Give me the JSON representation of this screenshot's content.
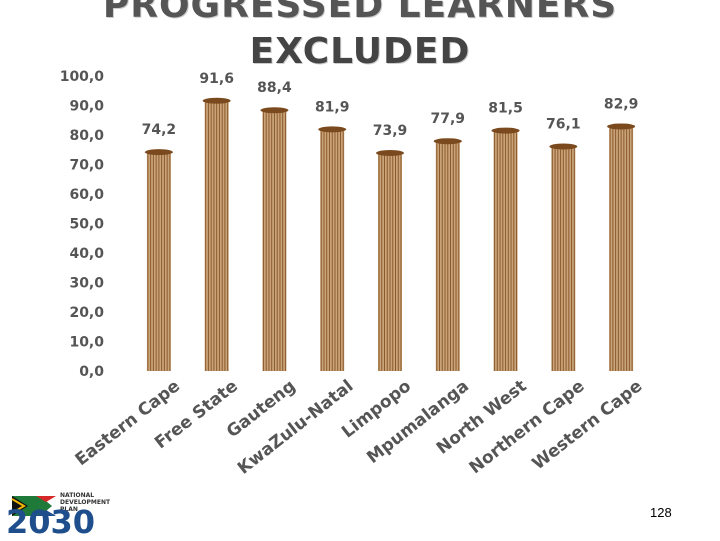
{
  "chart_data": {
    "type": "bar",
    "title_line1": "PROGRESSED LEARNERS",
    "title_line2": "EXCLUDED",
    "categories": [
      "Eastern Cape",
      "Free State",
      "Gauteng",
      "KwaZulu-Natal",
      "Limpopo",
      "Mpumalanga",
      "North West",
      "Northern Cape",
      "Western Cape"
    ],
    "values": [
      74.2,
      91.6,
      88.4,
      81.9,
      73.9,
      77.9,
      81.5,
      76.1,
      82.9
    ],
    "value_labels": [
      "74,2",
      "91,6",
      "88,4",
      "81,9",
      "73,9",
      "77,9",
      "81,5",
      "76,1",
      "82,9"
    ],
    "ylim": [
      0,
      100
    ],
    "yticks": [
      0,
      10,
      20,
      30,
      40,
      50,
      60,
      70,
      80,
      90,
      100
    ],
    "ytick_labels": [
      "0,0",
      "10,0",
      "20,0",
      "30,0",
      "40,0",
      "50,0",
      "60,0",
      "70,0",
      "80,0",
      "90,0",
      "100,0"
    ],
    "grid": false,
    "legend": "none",
    "bar_color": "#c9a47a",
    "bar_stripe_color": "#8b5a2b",
    "bar_cap_color": "#7a4a1e",
    "axis_text_color": "#555555"
  },
  "logo": {
    "line1": "NATIONAL",
    "line2": "DEVELOPMENT",
    "line3": "PLAN",
    "year": "2030"
  },
  "page_number": "128"
}
